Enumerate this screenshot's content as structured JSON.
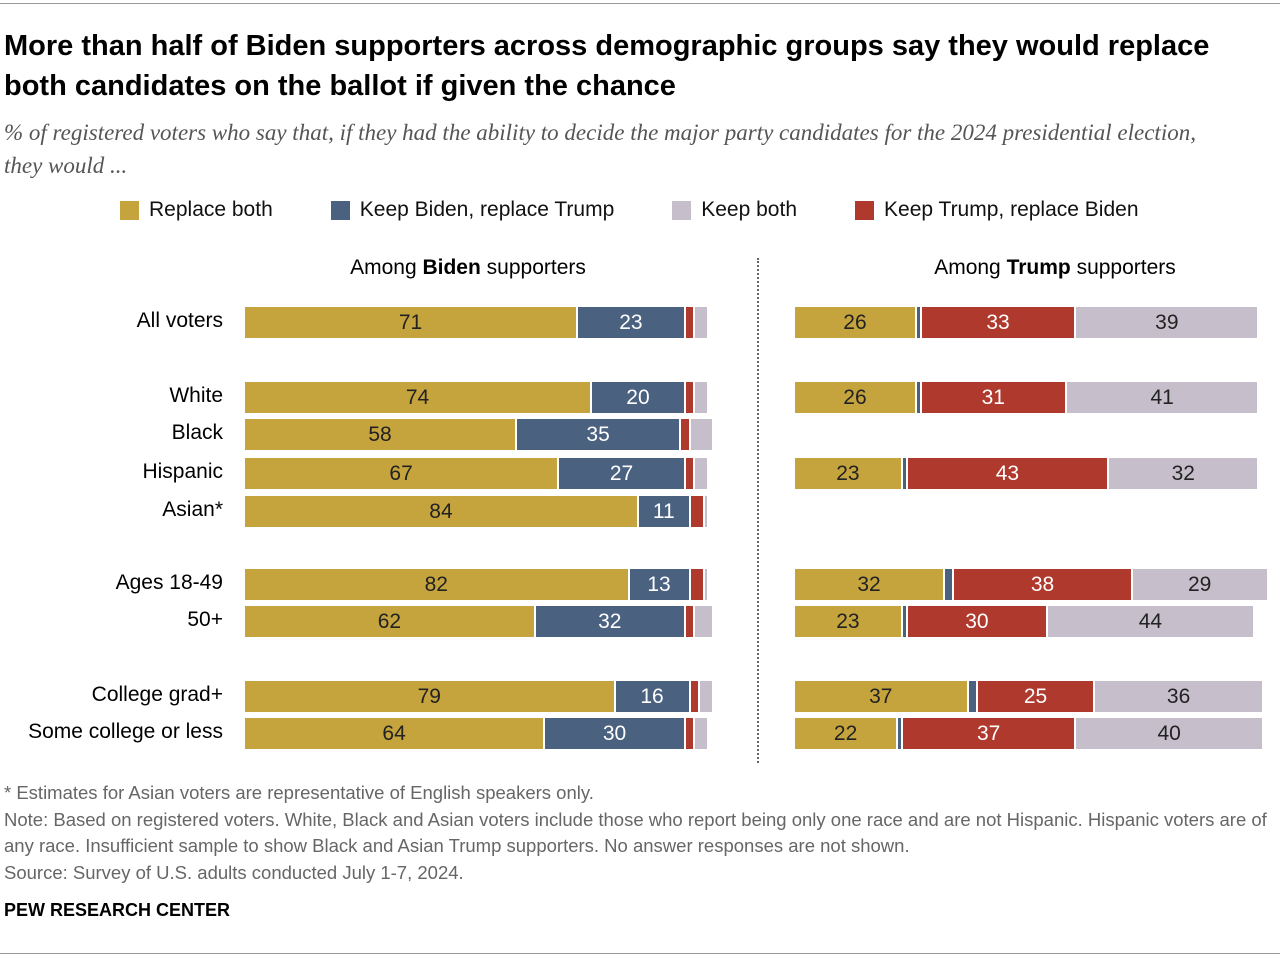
{
  "title": "More than half of Biden supporters across demographic groups say they would replace both candidates on the ballot if given the chance",
  "subtitle": "% of registered voters who say that, if they had the ability to decide the major party candidates for the 2024 presidential election, they would ...",
  "colors": {
    "replace_both": "#C5A43E",
    "keep_biden": "#4A6180",
    "keep_both": "#C6BFCB",
    "keep_trump": "#B0392E"
  },
  "chart_data": {
    "type": "bar",
    "orientation": "horizontal-stacked",
    "legend": {
      "placement": "top",
      "entries": [
        "Replace both",
        "Keep Biden, replace Trump",
        "Keep both",
        "Keep Trump, replace Biden"
      ]
    },
    "categories": [
      "All voters",
      "White",
      "Black",
      "Hispanic",
      "Asian*",
      "Ages 18-49",
      "50+",
      "College grad+",
      "Some college or less"
    ],
    "panels": [
      {
        "title_pre": "Among ",
        "title_bold": "Biden",
        "title_post": " supporters",
        "order": [
          "Replace both",
          "Keep Biden, replace Trump",
          "Keep Trump, replace Biden",
          "Keep both"
        ],
        "rows": [
          [
            71,
            23,
            2,
            3
          ],
          [
            74,
            20,
            2,
            3
          ],
          [
            58,
            35,
            2,
            5
          ],
          [
            67,
            27,
            2,
            3
          ],
          [
            84,
            11,
            3,
            1
          ],
          [
            82,
            13,
            3,
            1
          ],
          [
            62,
            32,
            2,
            4
          ],
          [
            79,
            16,
            2,
            3
          ],
          [
            64,
            30,
            2,
            3
          ]
        ]
      },
      {
        "title_pre": "Among ",
        "title_bold": "Trump",
        "title_post": " supporters",
        "order": [
          "Replace both",
          "Keep Biden, replace Trump",
          "Keep Trump, replace Biden",
          "Keep both"
        ],
        "rows": [
          [
            26,
            1,
            33,
            39
          ],
          [
            26,
            1,
            31,
            41
          ],
          null,
          [
            23,
            1,
            43,
            32
          ],
          null,
          [
            32,
            2,
            38,
            29
          ],
          [
            23,
            1,
            30,
            44
          ],
          [
            37,
            2,
            25,
            36
          ],
          [
            22,
            1,
            37,
            40
          ]
        ]
      }
    ]
  },
  "notes": [
    "* Estimates for Asian voters are representative of English speakers only.",
    "Note: Based on registered voters. White, Black and Asian voters include those who report being only one race and are not Hispanic. Hispanic voters are of any race. Insufficient sample to show Black and Asian Trump supporters. No answer responses are not shown.",
    "Source: Survey of U.S. adults conducted July 1-7, 2024."
  ],
  "brand": "PEW RESEARCH CENTER"
}
